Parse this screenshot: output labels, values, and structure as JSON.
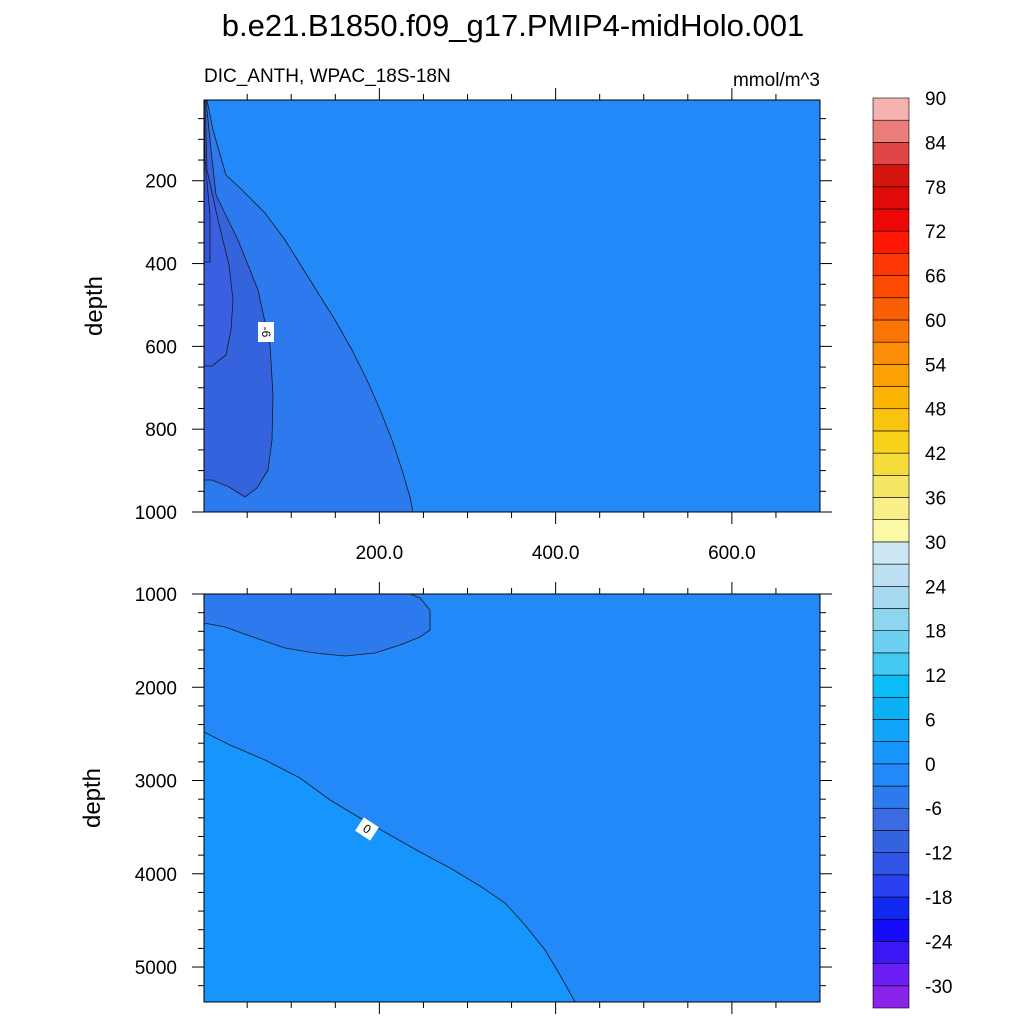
{
  "chart_data": {
    "type": "contour",
    "title": "b.e21.B1850.f09_g17.PMIP4-midHolo.001",
    "subtitle_left": "DIC_ANTH, WPAC_18S-18N",
    "subtitle_right": "mmol/m^3",
    "units": "mmol/m^3",
    "colorbar": {
      "labels": [
        "90",
        "84",
        "78",
        "72",
        "66",
        "60",
        "54",
        "48",
        "42",
        "36",
        "30",
        "24",
        "18",
        "12",
        "6",
        "0",
        "-6",
        "-12",
        "-18",
        "-24",
        "-30"
      ],
      "levels": [
        -30,
        -27,
        -24,
        -21,
        -18,
        -15,
        -12,
        -9,
        -6,
        -3,
        0,
        3,
        6,
        9,
        12,
        15,
        18,
        21,
        24,
        27,
        30,
        33,
        36,
        39,
        42,
        45,
        48,
        51,
        54,
        57,
        60,
        63,
        66,
        69,
        72,
        75,
        78,
        81,
        84,
        87,
        90
      ],
      "colors": [
        "#8a22ea",
        "#6a1ef4",
        "#3c16f6",
        "#140cf9",
        "#1028f2",
        "#2a3ff0",
        "#3055e6",
        "#3563dd",
        "#3a6be0",
        "#2d79ee",
        "#2389f8",
        "#1696fc",
        "#11a4f9",
        "#0cb1f5",
        "#0abdf6",
        "#44c9f3",
        "#6dd0f1",
        "#8ed5ef",
        "#a6d9ef",
        "#bcdff2",
        "#cde6f4",
        "#fbf9a4",
        "#f8ef88",
        "#f6e665",
        "#f5dc3c",
        "#f8d21a",
        "#f9c40f",
        "#fbb304",
        "#fba103",
        "#fb8e06",
        "#fa7406",
        "#fb5f05",
        "#fc4a03",
        "#fd3703",
        "#fe1702",
        "#ee0805",
        "#e00a08",
        "#d3150e",
        "#e04548",
        "#ec7c79",
        "#f6b1b1"
      ]
    },
    "panels": [
      {
        "name": "upper",
        "x_ticks": [
          "200.0",
          "400.0",
          "600.0"
        ],
        "x_tick_values": [
          200,
          400,
          600
        ],
        "xlim": [
          1,
          700
        ],
        "ylabel": "depth",
        "y_ticks": [
          "200",
          "400",
          "600",
          "800",
          "1000"
        ],
        "y_tick_values": [
          200,
          400,
          600,
          800,
          1000
        ],
        "ylim": [
          5,
          1000
        ],
        "contour_labels": [
          "-6"
        ]
      },
      {
        "name": "lower",
        "x_ticks": [],
        "x_tick_values": [
          200,
          400,
          600
        ],
        "xlim": [
          1,
          700
        ],
        "ylabel": "depth",
        "y_ticks": [
          "1000",
          "2000",
          "3000",
          "4000",
          "5000"
        ],
        "y_tick_values": [
          1000,
          2000,
          3000,
          4000,
          5000
        ],
        "ylim": [
          1000,
          5375
        ],
        "contour_labels": [
          "0"
        ]
      }
    ]
  }
}
